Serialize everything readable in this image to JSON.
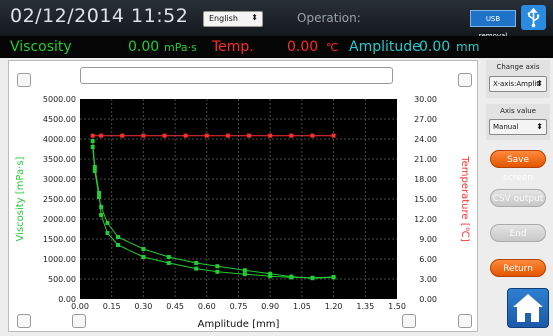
{
  "header": {
    "datetime": "02/12/2014  11:52",
    "language": "English",
    "operation_label": "Operation:",
    "usb_button": "USB removal"
  },
  "status": {
    "viscosity_label": "Viscosity",
    "viscosity_value": "0.00",
    "viscosity_unit": "mPa·s",
    "temp_label": "Temp.",
    "temp_value": "0.00",
    "temp_unit": "℃",
    "amplitude_label": "Amplitude",
    "amplitude_value": "0.00",
    "amplitude_unit": "mm"
  },
  "side": {
    "change_axis_label": "Change axis",
    "change_axis_value": "X-axis:Amplitude",
    "axis_value_label": "Axis value",
    "axis_value_value": "Manual",
    "save_screen": "Save screen",
    "csv_output": "CSV output",
    "end": "End",
    "return": "Return"
  },
  "colors": {
    "viscosity": "#22cc33",
    "temperature": "#ff3030",
    "amplitude": "#22cccc",
    "accent_orange": "#f06a10",
    "plot_bg": "#000000"
  },
  "chart_data": {
    "type": "line",
    "xlabel": "Amplitude [mm]",
    "ylabel": "Viscosity [mPa·s]",
    "y2label": "Temperature [℃]",
    "xlim": [
      0,
      1.5
    ],
    "ylim": [
      0,
      5000
    ],
    "y2lim": [
      0,
      30
    ],
    "xticks": [
      "0.00",
      "0.15",
      "0.30",
      "0.45",
      "0.60",
      "0.75",
      "0.90",
      "1.05",
      "1.20",
      "1.35",
      "1.50"
    ],
    "yticks": [
      "0.00",
      "500.00",
      "1000.00",
      "1500.00",
      "2000.00",
      "2500.00",
      "3000.00",
      "3500.00",
      "4000.00",
      "4500.00",
      "5000.00"
    ],
    "y2ticks": [
      "0.00",
      "3.00",
      "6.00",
      "9.00",
      "12.00",
      "15.00",
      "18.00",
      "21.00",
      "24.00",
      "27.00",
      "30.00"
    ],
    "grid": true,
    "series": [
      {
        "axis": "left",
        "color": "#22cc33",
        "x": [
          0.06,
          0.07,
          0.09,
          0.1,
          0.13,
          0.18,
          0.3,
          0.42,
          0.55,
          0.65,
          0.78,
          0.9,
          1.0,
          1.1,
          1.2
        ],
        "y": [
          3950,
          3300,
          2650,
          2100,
          1650,
          1350,
          1050,
          900,
          760,
          680,
          620,
          570,
          540,
          530,
          550
        ]
      },
      {
        "axis": "left",
        "color": "#22cc33",
        "x": [
          0.06,
          0.07,
          0.09,
          0.1,
          0.13,
          0.18,
          0.3,
          0.42,
          0.55,
          0.65,
          0.78,
          0.9,
          1.0,
          1.1,
          1.2
        ],
        "y": [
          3800,
          3200,
          2550,
          2300,
          1900,
          1550,
          1250,
          1050,
          900,
          820,
          720,
          630,
          560,
          520,
          540
        ]
      },
      {
        "axis": "right",
        "color": "#ff3030",
        "x": [
          0.06,
          0.1,
          0.2,
          0.3,
          0.4,
          0.5,
          0.6,
          0.7,
          0.8,
          0.9,
          1.0,
          1.1,
          1.2
        ],
        "y": [
          24.5,
          24.5,
          24.5,
          24.5,
          24.5,
          24.5,
          24.5,
          24.5,
          24.5,
          24.5,
          24.5,
          24.5,
          24.5
        ]
      }
    ]
  }
}
